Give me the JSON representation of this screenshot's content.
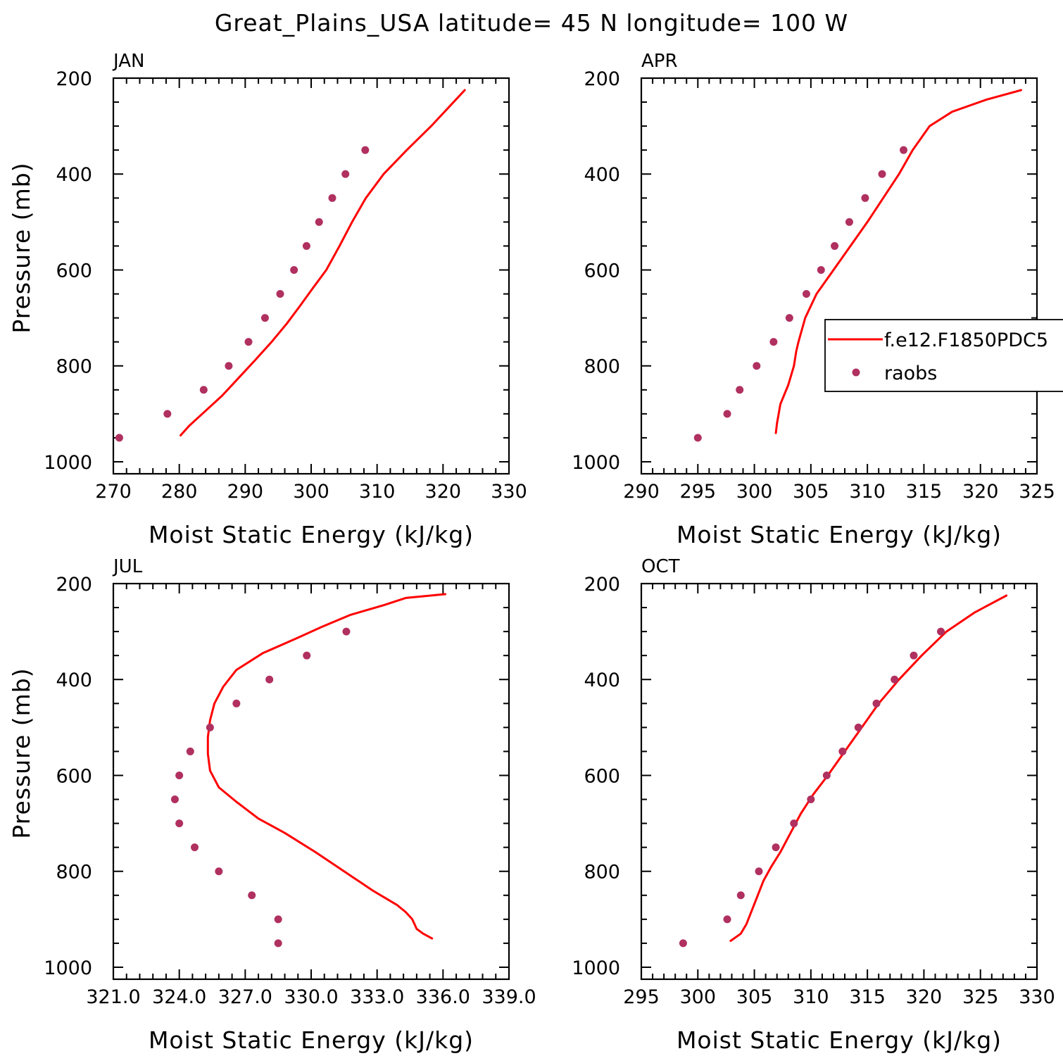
{
  "figure": {
    "title": "Great_Plains_USA  latitude= 45 N longitude= 100 W"
  },
  "colors": {
    "model_line": "#ff0000",
    "raobs_marker": "#b03060",
    "axes": "#000000",
    "background": "#ffffff"
  },
  "legend": {
    "panel": "APR",
    "placement": "right (clipped at figure edge)",
    "entries": [
      {
        "label": "f.e12.F1850PDC5",
        "style": "line"
      },
      {
        "label": "raobs",
        "style": "marker"
      }
    ]
  },
  "chart_data": [
    {
      "type": "line",
      "panel_label": "JAN",
      "xlabel": "Moist Static Energy (kJ/kg)",
      "ylabel": "Pressure (mb)",
      "xlim": [
        270,
        330
      ],
      "ylim": [
        1025,
        200
      ],
      "x_ticks": [
        "270",
        "280",
        "290",
        "300",
        "310",
        "320",
        "330"
      ],
      "y_ticks": [
        "200",
        "400",
        "600",
        "800",
        "1000"
      ],
      "y_axis_reversed": true,
      "grid": false,
      "series": [
        {
          "name": "f.e12.F1850PDC5",
          "style": "line",
          "x": [
            280.2,
            281.5,
            283.5,
            286.5,
            289.0,
            291.5,
            294.0,
            296.3,
            298.3,
            300.3,
            302.3,
            304.3,
            306.2,
            308.3,
            311.0,
            314.5,
            318.2,
            323.3
          ],
          "y": [
            945,
            925,
            900,
            862,
            825,
            788,
            750,
            712,
            675,
            637,
            600,
            550,
            500,
            450,
            400,
            350,
            300,
            225
          ]
        },
        {
          "name": "raobs",
          "style": "marker",
          "x": [
            270.9,
            278.2,
            283.7,
            287.5,
            290.5,
            293.0,
            295.3,
            297.4,
            299.3,
            301.2,
            303.2,
            305.2,
            308.2
          ],
          "y": [
            950,
            900,
            850,
            800,
            750,
            700,
            650,
            600,
            550,
            500,
            450,
            400,
            350
          ]
        }
      ]
    },
    {
      "type": "line",
      "panel_label": "APR",
      "xlabel": "Moist Static Energy (kJ/kg)",
      "ylabel": "",
      "xlim": [
        290,
        325
      ],
      "ylim": [
        1025,
        200
      ],
      "x_ticks": [
        "290",
        "295",
        "300",
        "305",
        "310",
        "315",
        "320",
        "325"
      ],
      "y_ticks": [
        "200",
        "400",
        "600",
        "800",
        "1000"
      ],
      "y_axis_reversed": true,
      "grid": false,
      "series": [
        {
          "name": "f.e12.F1850PDC5",
          "style": "line",
          "x": [
            301.9,
            302.0,
            302.3,
            303.0,
            303.5,
            303.7,
            303.9,
            304.5,
            305.5,
            307.0,
            308.5,
            310.0,
            311.4,
            312.8,
            314.0,
            315.5,
            317.5,
            320.5,
            323.6
          ],
          "y": [
            940,
            920,
            880,
            840,
            800,
            770,
            750,
            700,
            650,
            600,
            550,
            500,
            450,
            400,
            350,
            300,
            270,
            245,
            225
          ]
        },
        {
          "name": "raobs",
          "style": "marker",
          "x": [
            295.0,
            297.6,
            298.7,
            300.2,
            301.7,
            303.1,
            304.6,
            305.9,
            307.1,
            308.4,
            309.8,
            311.3,
            313.2
          ],
          "y": [
            950,
            900,
            850,
            800,
            750,
            700,
            650,
            600,
            550,
            500,
            450,
            400,
            350
          ]
        }
      ]
    },
    {
      "type": "line",
      "panel_label": "JUL",
      "xlabel": "Moist Static Energy (kJ/kg)",
      "ylabel": "Pressure (mb)",
      "xlim": [
        321.0,
        339.0
      ],
      "ylim": [
        1025,
        200
      ],
      "x_ticks": [
        "321.0",
        "324.0",
        "327.0",
        "330.0",
        "333.0",
        "336.0",
        "339.0"
      ],
      "y_ticks": [
        "200",
        "400",
        "600",
        "800",
        "1000"
      ],
      "y_axis_reversed": true,
      "grid": false,
      "series": [
        {
          "name": "f.e12.F1850PDC5",
          "style": "line",
          "x": [
            335.5,
            335.1,
            334.8,
            334.6,
            334.3,
            333.9,
            332.8,
            331.5,
            330.2,
            328.8,
            327.6,
            326.6,
            325.8,
            325.4,
            325.3,
            325.3,
            325.4,
            325.6,
            326.0,
            326.6,
            327.8,
            329.3,
            330.5,
            331.8,
            333.3,
            334.3,
            336.1
          ],
          "y": [
            940,
            930,
            920,
            900,
            885,
            870,
            840,
            800,
            760,
            720,
            690,
            655,
            625,
            590,
            555,
            520,
            485,
            450,
            415,
            380,
            345,
            315,
            290,
            265,
            245,
            230,
            222
          ]
        },
        {
          "name": "raobs",
          "style": "marker",
          "x": [
            328.5,
            328.5,
            327.3,
            325.8,
            324.7,
            324.0,
            323.8,
            324.0,
            324.5,
            325.4,
            326.6,
            328.1,
            329.8,
            331.6
          ],
          "y": [
            950,
            900,
            850,
            800,
            750,
            700,
            650,
            600,
            550,
            500,
            450,
            400,
            350,
            300
          ]
        }
      ]
    },
    {
      "type": "line",
      "panel_label": "OCT",
      "xlabel": "Moist Static Energy (kJ/kg)",
      "ylabel": "",
      "xlim": [
        295,
        330
      ],
      "ylim": [
        1025,
        200
      ],
      "x_ticks": [
        "295",
        "300",
        "305",
        "310",
        "315",
        "320",
        "325",
        "330"
      ],
      "y_ticks": [
        "200",
        "400",
        "600",
        "800",
        "1000"
      ],
      "y_axis_reversed": true,
      "grid": false,
      "series": [
        {
          "name": "f.e12.F1850PDC5",
          "style": "line",
          "x": [
            302.9,
            303.8,
            304.3,
            304.8,
            305.3,
            305.8,
            306.5,
            307.3,
            308.2,
            309.1,
            310.2,
            311.5,
            313.0,
            314.5,
            316.0,
            317.8,
            319.8,
            322.0,
            324.5,
            327.3
          ],
          "y": [
            945,
            930,
            910,
            880,
            850,
            820,
            790,
            760,
            720,
            680,
            640,
            600,
            550,
            500,
            450,
            400,
            350,
            300,
            260,
            225
          ]
        },
        {
          "name": "raobs",
          "style": "marker",
          "x": [
            298.7,
            302.6,
            303.8,
            305.4,
            306.9,
            308.5,
            310.0,
            311.4,
            312.8,
            314.2,
            315.8,
            317.4,
            319.1,
            321.5
          ],
          "y": [
            950,
            900,
            850,
            800,
            750,
            700,
            650,
            600,
            550,
            500,
            450,
            400,
            350,
            300
          ]
        }
      ]
    }
  ]
}
